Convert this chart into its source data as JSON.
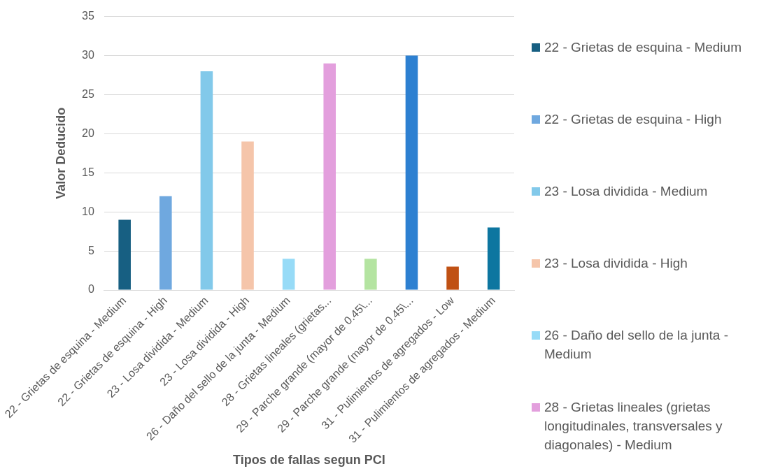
{
  "chart_data": {
    "type": "bar",
    "xlabel": "Tipos de fallas segun PCI",
    "ylabel": "Valor Deducido",
    "categories": [
      "22 - Grietas de esquina - Medium",
      "22 - Grietas de esquina - High",
      "23 - Losa dividida - Medium",
      "23 - Losa dividida - High",
      "26 - Daño del sello de la junta - Medium",
      "28 - Grietas lineales (grietas...",
      "29 - Parche grande (mayor de 0.45\\...",
      "29 - Parche grande (mayor de 0.45\\...",
      "31 - Pulimientos de agregados - Low",
      "31 - Pulimientos de agregados - Medium"
    ],
    "series": [
      {
        "name": "22 - Grietas de esquina - Medium",
        "color": "#175f82",
        "values": [
          9,
          null,
          null,
          null,
          null,
          null,
          null,
          null,
          null,
          null
        ]
      },
      {
        "name": "22 - Grietas de esquina - High",
        "color": "#6fa8df",
        "values": [
          null,
          12,
          null,
          null,
          null,
          null,
          null,
          null,
          null,
          null
        ]
      },
      {
        "name": "23 - Losa dividida - Medium",
        "color": "#82c9ea",
        "values": [
          null,
          null,
          28,
          null,
          null,
          null,
          null,
          null,
          null,
          null
        ]
      },
      {
        "name": "23 - Losa dividida - High",
        "color": "#f5c5aa",
        "values": [
          null,
          null,
          null,
          19,
          null,
          null,
          null,
          null,
          null,
          null
        ]
      },
      {
        "name": "26 - Daño del sello de la junta - Medium",
        "color": "#97dbf7",
        "values": [
          null,
          null,
          null,
          null,
          4,
          null,
          null,
          null,
          null,
          null
        ]
      },
      {
        "name": "28 - Grietas lineales (grietas longitudinales, transversales y diagonales) - Medium",
        "color": "#e39fdd",
        "values": [
          null,
          null,
          null,
          null,
          null,
          29,
          null,
          null,
          null,
          null
        ]
      },
      {
        "color": "#b4e4a1",
        "values": [
          null,
          null,
          null,
          null,
          null,
          null,
          4,
          null,
          null,
          null
        ]
      },
      {
        "color": "#2d80d1",
        "values": [
          null,
          null,
          null,
          null,
          null,
          null,
          null,
          30,
          null,
          null
        ]
      },
      {
        "color": "#c05114",
        "values": [
          null,
          null,
          null,
          null,
          null,
          null,
          null,
          null,
          3,
          null
        ]
      },
      {
        "color": "#0d76a0",
        "values": [
          null,
          null,
          null,
          null,
          null,
          null,
          null,
          null,
          null,
          8
        ]
      }
    ],
    "ylim": [
      0,
      35
    ],
    "yticks": [
      0,
      5,
      10,
      15,
      20,
      25,
      30,
      35
    ],
    "grid": "y",
    "legend": "right"
  }
}
